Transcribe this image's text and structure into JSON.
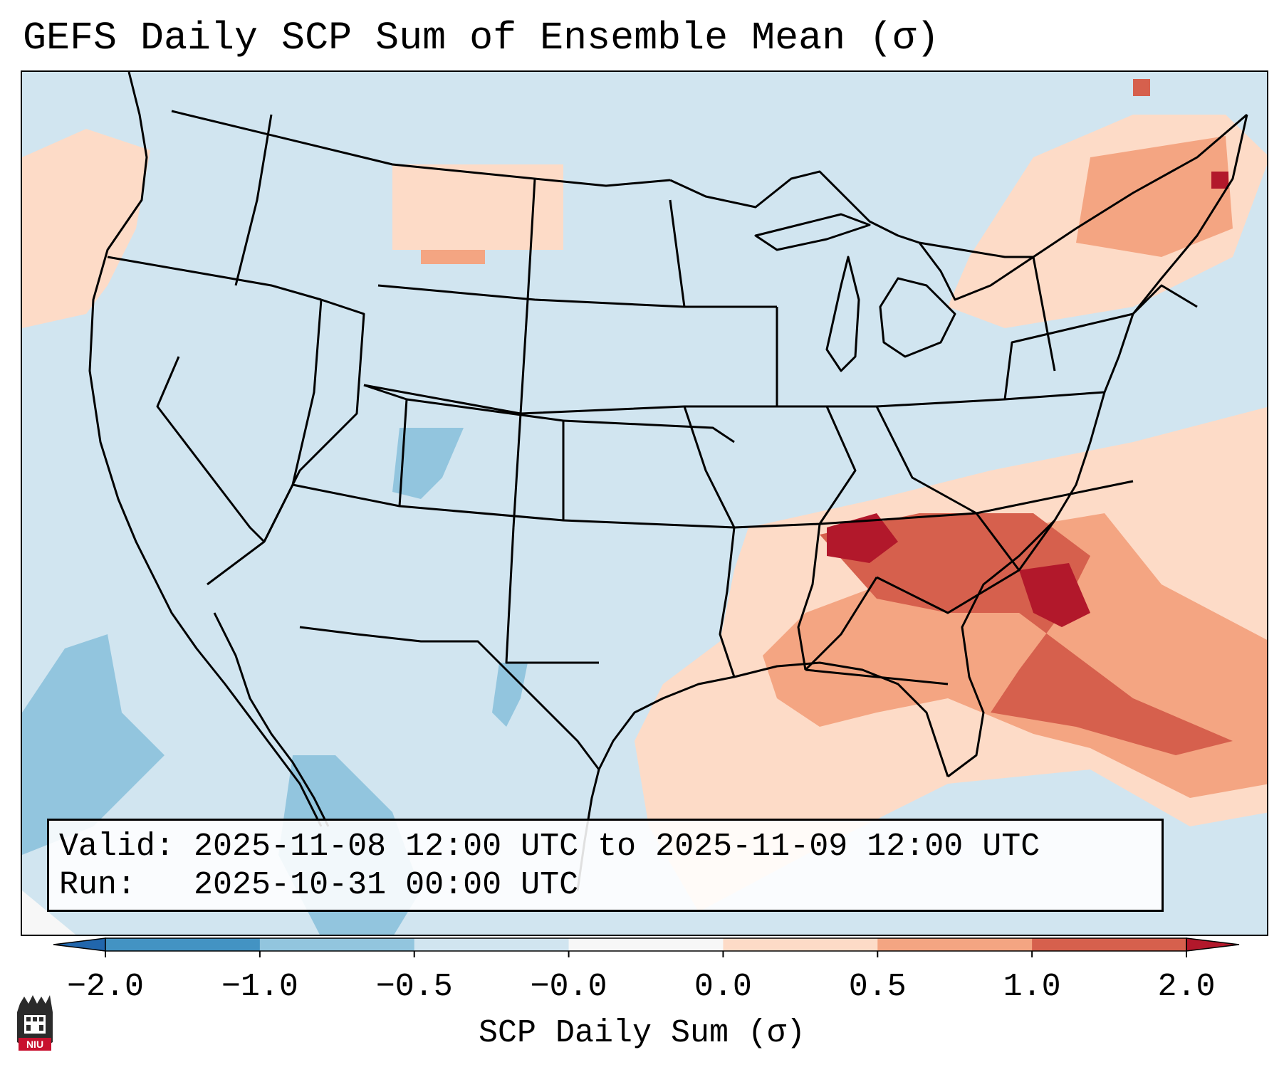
{
  "title": "GEFS Daily SCP Sum of Ensemble Mean (σ)",
  "info": {
    "valid_label": "Valid:",
    "valid_value": "2025-11-08 12:00 UTC to 2025-11-09 12:00 UTC",
    "run_label": "Run:",
    "run_value": "2025-10-31 00:00 UTC"
  },
  "colorbar": {
    "label": "SCP Daily Sum (σ)",
    "tick_labels": [
      "−2.0",
      "−1.0",
      "−0.5",
      "−0.0",
      "0.0",
      "0.5",
      "1.0",
      "2.0"
    ],
    "bin_colors": [
      "#4393c3",
      "#92c5de",
      "#d1e5f0",
      "#f7f7f7",
      "#fddbc7",
      "#f4a582",
      "#d6604d"
    ],
    "under_color": "#2166ac",
    "over_color": "#b2182b"
  },
  "map": {
    "background_color": "#d1e5f0",
    "land_boundaries": "state and national outlines, CONUS",
    "region": "Contiguous United States"
  },
  "logo": {
    "text": "NIU"
  }
}
